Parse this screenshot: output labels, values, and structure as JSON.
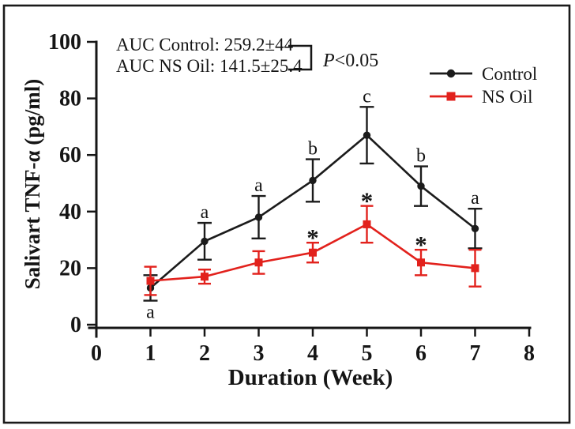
{
  "chart_data": {
    "type": "line",
    "title": "",
    "xlabel": "Duration (Week)",
    "ylabel": "Salivart TNF-α (pg/ml)",
    "xlim": [
      0,
      8
    ],
    "ylim": [
      0,
      100
    ],
    "x_ticks": [
      0,
      1,
      2,
      3,
      4,
      5,
      6,
      7,
      8
    ],
    "y_ticks": [
      0,
      20,
      40,
      60,
      80,
      100
    ],
    "grid": false,
    "x": [
      1,
      2,
      3,
      4,
      5,
      6,
      7
    ],
    "series": [
      {
        "name": "Control",
        "color": "#1b1b1b",
        "marker": "circle",
        "values": [
          13,
          29.5,
          38,
          51,
          67,
          49,
          34
        ],
        "errors": [
          4.5,
          6.5,
          7.5,
          7.5,
          10,
          7,
          7
        ],
        "point_labels": [
          "a",
          "a",
          "a",
          "b",
          "c",
          "b",
          "a"
        ],
        "label_positions": [
          "below",
          "above",
          "above",
          "above",
          "above",
          "above",
          "above"
        ]
      },
      {
        "name": "NS Oil",
        "color": "#e2211c",
        "marker": "square",
        "values": [
          15.5,
          17,
          22,
          25.5,
          35.5,
          22,
          20
        ],
        "errors": [
          5,
          2.5,
          4,
          3.5,
          6.5,
          4.5,
          6.5
        ],
        "point_labels": [
          "",
          "",
          "",
          "*",
          "*",
          "*",
          ""
        ],
        "label_positions": [
          "",
          "",
          "",
          "above",
          "above",
          "above",
          ""
        ]
      }
    ],
    "annotation": {
      "line1": "AUC Control: 259.2±44",
      "line2": "AUC NS Oil: 141.5±25.4",
      "p_italic": "P",
      "p_rest": "<0.05"
    },
    "legend": {
      "position": "top-right",
      "entries": [
        {
          "label": "Control"
        },
        {
          "label": "NS Oil"
        }
      ]
    }
  }
}
